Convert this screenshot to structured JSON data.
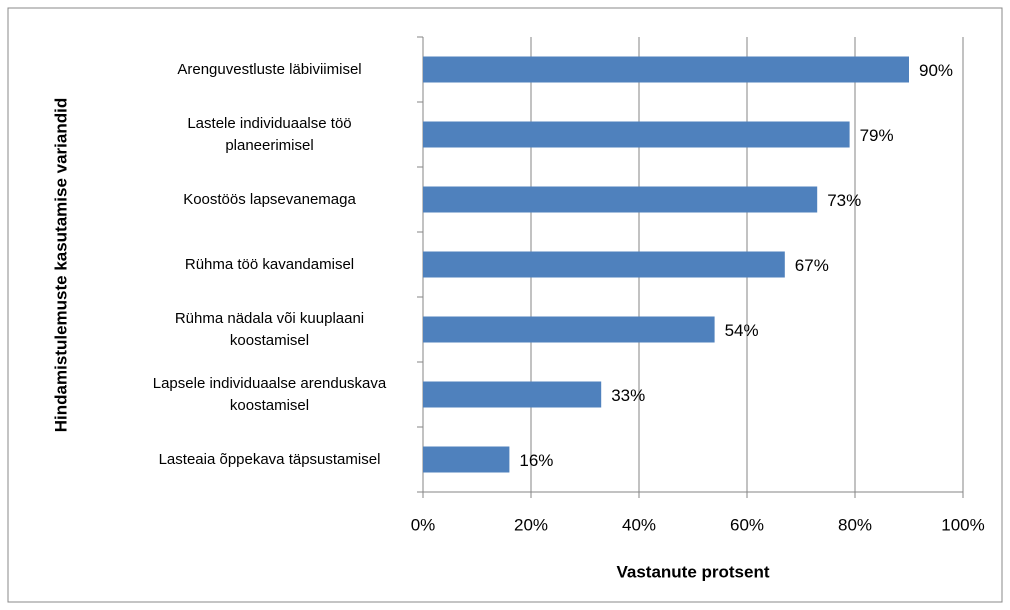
{
  "chart_data": {
    "type": "bar",
    "orientation": "horizontal",
    "x_label": "Vastanute protsent",
    "y_label": "Hindamistulemuste kasutamise variandid",
    "categories": [
      "Arenguvestluste läbiviimisel",
      "Lastele individuaalse töö planeerimisel",
      "Koostöös lapsevanemaga",
      "Rühma töö kavandamisel",
      "Rühma nädala või kuuplaani koostamisel",
      "Lapsele individuaalse arenduskava koostamisel",
      "Lasteaia õppekava täpsustamisel"
    ],
    "values": [
      90,
      79,
      73,
      67,
      54,
      33,
      16
    ],
    "value_labels": [
      "90%",
      "79%",
      "73%",
      "67%",
      "54%",
      "33%",
      "16%"
    ],
    "color": "#4f81bd",
    "xlim": [
      0,
      100
    ],
    "xticks": [
      {
        "value": 0,
        "label": "0%"
      },
      {
        "value": 20,
        "label": "20%"
      },
      {
        "value": 40,
        "label": "40%"
      },
      {
        "value": 60,
        "label": "60%"
      },
      {
        "value": 80,
        "label": "80%"
      },
      {
        "value": 100,
        "label": "100%"
      }
    ],
    "grid": true
  }
}
